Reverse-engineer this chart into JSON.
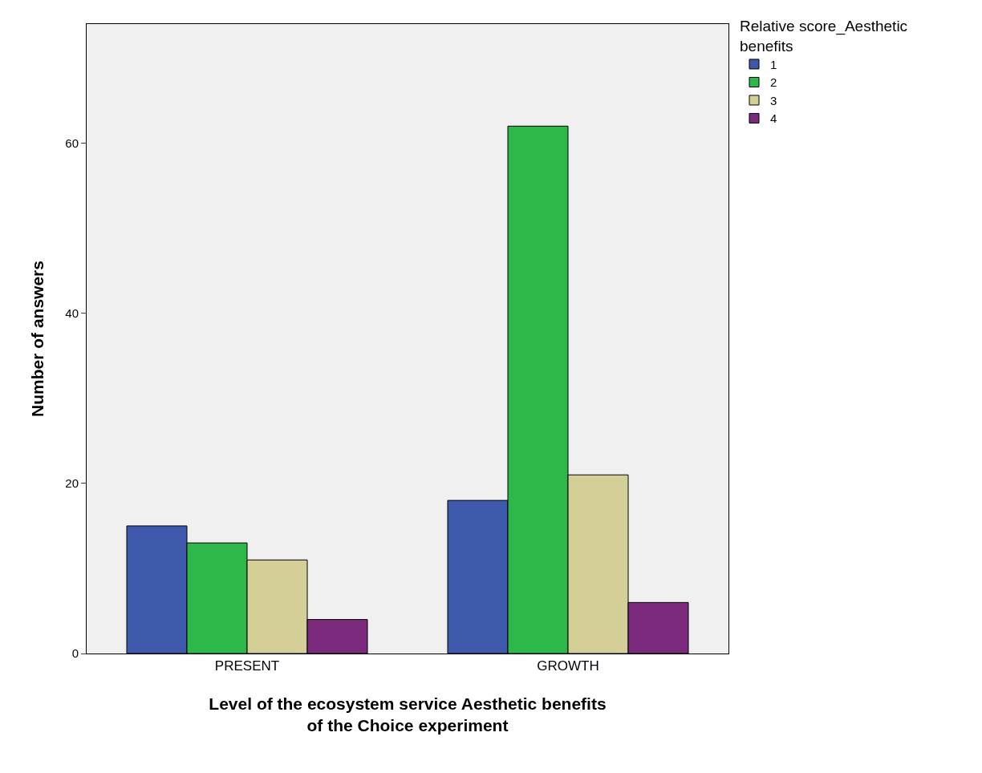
{
  "chart_data": {
    "type": "bar",
    "xlabel": "Level of the ecosystem service Aesthetic benefits of the Choice experiment",
    "ylabel": "Number of answers",
    "legend_title": "Relative score_Aesthetic benefits",
    "categories": [
      "PRESENT",
      "GROWTH"
    ],
    "series": [
      {
        "name": "1",
        "color": "#3e58ac",
        "values": [
          15,
          18
        ]
      },
      {
        "name": "2",
        "color": "#2fb84a",
        "values": [
          13,
          62
        ]
      },
      {
        "name": "3",
        "color": "#d4cf96",
        "values": [
          11,
          21
        ]
      },
      {
        "name": "4",
        "color": "#7b2a7c",
        "values": [
          4,
          6
        ]
      }
    ],
    "ylim": [
      0,
      74
    ],
    "yticks": [
      0,
      20,
      40,
      60
    ],
    "grid": false,
    "legend": "top right"
  }
}
